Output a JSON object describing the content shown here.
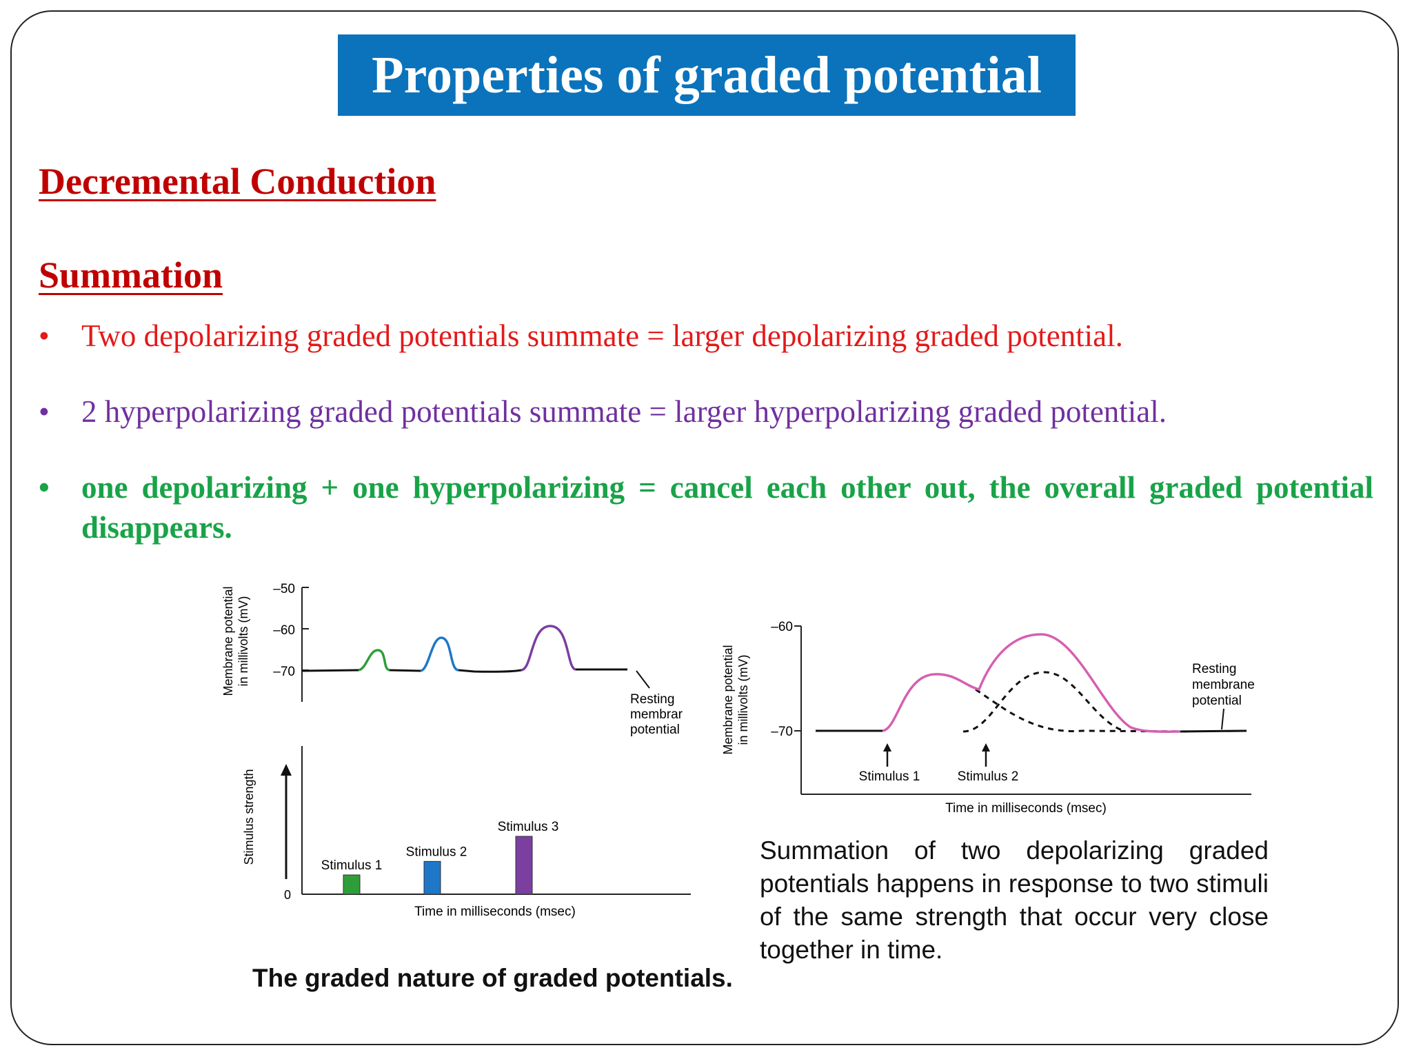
{
  "title": "Properties of graded potential",
  "headings": {
    "decremental": "Decremental Conduction",
    "summation": "Summation"
  },
  "bullets": [
    {
      "marker": "•",
      "text": "Two depolarizing graded potentials summate = larger depolarizing graded potential.",
      "color": "#e31a1a"
    },
    {
      "marker": "•",
      "text": "2 hyperpolarizing graded potentials summate = larger hyperpolarizing graded potential.",
      "color": "#7030a0"
    },
    {
      "marker": "•",
      "text": "one depolarizing + one hyperpolarizing = cancel each other out, the overall graded potential disappears.",
      "color": "#19a348"
    }
  ],
  "left_figure": {
    "top_chart": {
      "ylabel_line1": "Membrane potential",
      "ylabel_line2": "in millivolts (mV)",
      "y_ticks": [
        "–50",
        "–60",
        "–70"
      ],
      "annotation_line1": "Resting",
      "annotation_line2": "membrar",
      "annotation_line3": "potential",
      "resting_mV": -70,
      "peaks_mV": [
        -65,
        -62,
        -59
      ],
      "peak_colors": [
        "#2e9e3a",
        "#1f77c8",
        "#7b3fa0"
      ]
    },
    "bottom_chart": {
      "ylabel": "Stimulus strength",
      "y_zero": "0",
      "xlabel": "Time in milliseconds (msec)",
      "stimuli": [
        {
          "label": "Stimulus 1",
          "strength": 1,
          "color": "#2e9e3a"
        },
        {
          "label": "Stimulus 2",
          "strength": 1.7,
          "color": "#1f77c8"
        },
        {
          "label": "Stimulus 3",
          "strength": 3,
          "color": "#7b3fa0"
        }
      ]
    },
    "caption": "The graded nature of graded potentials."
  },
  "right_figure": {
    "ylabel_line1": "Membrane potential",
    "ylabel_line2": "in millivolts (mV)",
    "y_ticks": [
      "–60",
      "–70"
    ],
    "annotation_line1": "Resting",
    "annotation_line2": "membrane",
    "annotation_line3": "potential",
    "stimulus1": "Stimulus 1",
    "stimulus2": "Stimulus 2",
    "xlabel": "Time in milliseconds (msec)",
    "curve_color": "#d65fb0",
    "caption": "Summation of two depolarizing graded potentials happens in response to two stimuli of the same strength that occur very close together in time."
  }
}
